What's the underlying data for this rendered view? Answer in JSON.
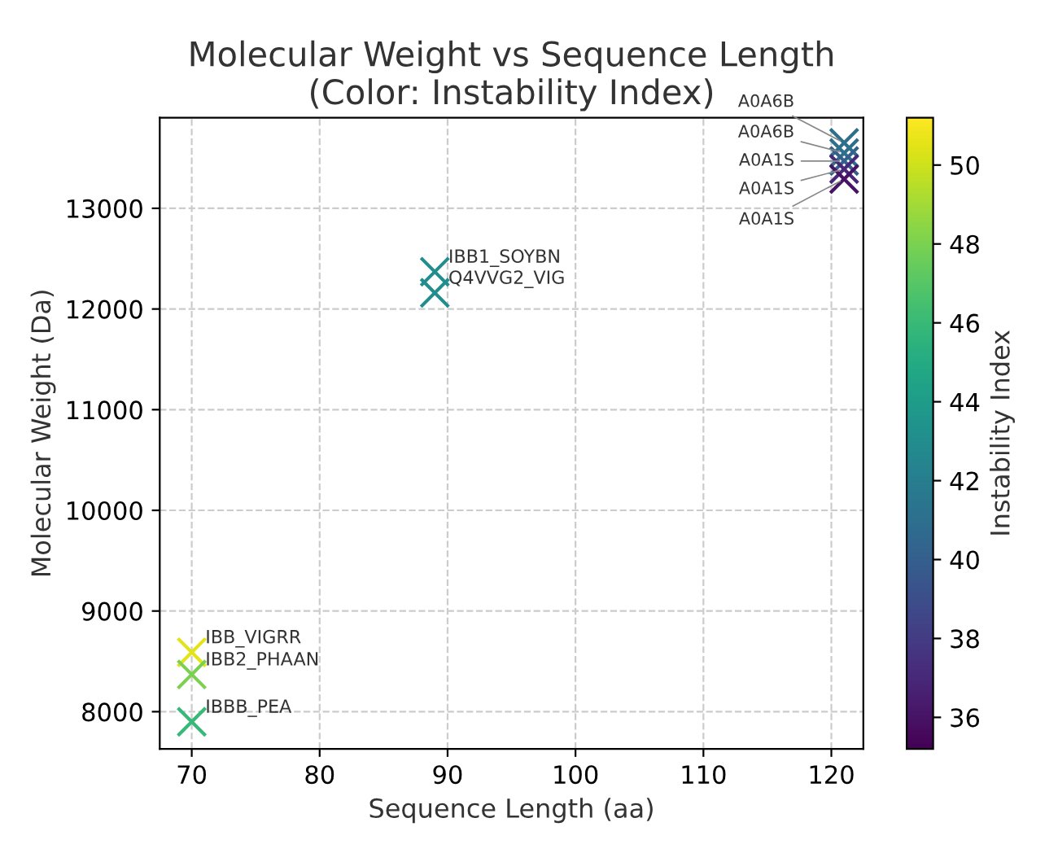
{
  "chart_data": {
    "type": "scatter",
    "title": "Molecular Weight vs Sequence Length\n(Color: Instability Index)",
    "xlabel": "Sequence Length (aa)",
    "ylabel": "Molecular Weight (Da)",
    "clabel": "Instability Index",
    "x": [
      121,
      121,
      121,
      121,
      121,
      89,
      89,
      70,
      70,
      70
    ],
    "values": [
      13650,
      13550,
      13470,
      13390,
      13290,
      12370,
      12160,
      8590,
      8370,
      7900
    ],
    "cvalues": [
      41,
      41,
      40,
      37,
      36,
      43,
      43,
      50.5,
      48,
      46
    ],
    "annotations": [
      {
        "text": "A0A6B",
        "x": 121,
        "y": 13650
      },
      {
        "text": "A0A6B",
        "x": 121,
        "y": 13550
      },
      {
        "text": "A0A1S",
        "x": 121,
        "y": 13470
      },
      {
        "text": "A0A1S",
        "x": 121,
        "y": 13390
      },
      {
        "text": "A0A1S",
        "x": 121,
        "y": 13290
      },
      {
        "text": "IBB1_SOYBN",
        "x": 89,
        "y": 12370
      },
      {
        "text": "Q4VVG2_VIG",
        "x": 89,
        "y": 12160
      },
      {
        "text": "IBB_VIGRR",
        "x": 70,
        "y": 8590
      },
      {
        "text": "IBB2_PHAAN",
        "x": 70,
        "y": 8370
      },
      {
        "text": "IBBB_PEA",
        "x": 70,
        "y": 7900
      }
    ],
    "xlim": [
      67.5,
      122.5
    ],
    "xticks": [
      70,
      80,
      90,
      100,
      110,
      120
    ],
    "ylim": [
      7630,
      13900
    ],
    "yticks": [
      8000,
      9000,
      10000,
      11000,
      12000,
      13000
    ],
    "clim": [
      35.2,
      51.2
    ],
    "cticks": [
      36,
      38,
      40,
      42,
      44,
      46,
      48,
      50
    ],
    "marker": "cross",
    "grid": true
  }
}
